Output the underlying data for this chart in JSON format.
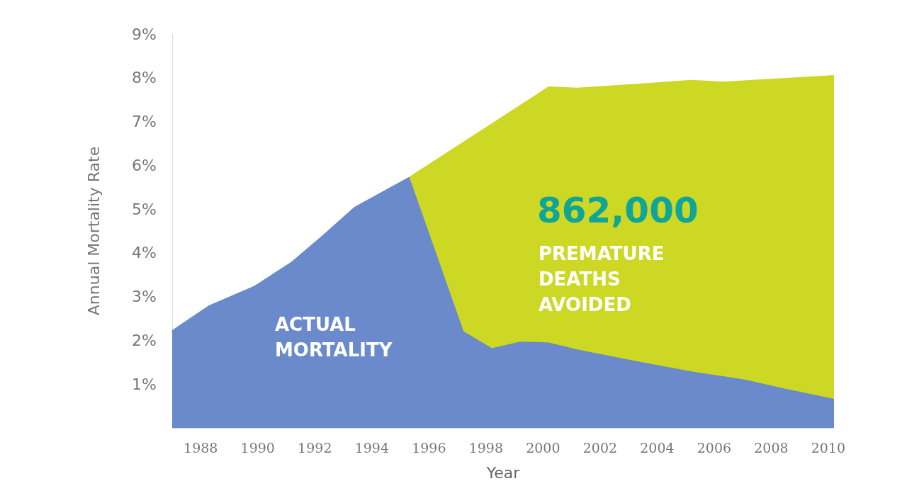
{
  "chart_data": {
    "type": "area",
    "xlabel": "Year",
    "ylabel": "Annual Mortality Rate",
    "xlim": [
      1987,
      2010.2
    ],
    "xticks": [
      1988,
      1990,
      1992,
      1994,
      1996,
      1998,
      2000,
      2002,
      2004,
      2006,
      2008,
      2010
    ],
    "ylim": [
      0,
      9
    ],
    "yticks": [
      {
        "value": 1,
        "label": "1%"
      },
      {
        "value": 2,
        "label": "2%"
      },
      {
        "value": 3,
        "label": "3%"
      },
      {
        "value": 4,
        "label": "4%"
      },
      {
        "value": 5,
        "label": "5%"
      },
      {
        "value": 6,
        "label": "6%"
      },
      {
        "value": 7,
        "label": "7%"
      },
      {
        "value": 8,
        "label": "8%"
      },
      {
        "value": 9,
        "label": "9%"
      }
    ],
    "series": [
      {
        "name": "PREMATURE DEATHS AVOIDED",
        "color": "#cdd824",
        "x": [
          1995.3,
          1998.1,
          2000.2,
          2001.2,
          2003.3,
          2005.2,
          2006.3,
          2010.2
        ],
        "values": [
          5.72,
          6.9,
          7.79,
          7.76,
          7.85,
          7.94,
          7.9,
          8.05
        ]
      },
      {
        "name": "ACTUAL MORTALITY",
        "color": "#6a8acb",
        "x": [
          1987,
          1988.3,
          1989.9,
          1991.2,
          1992.3,
          1993.4,
          1995.3,
          1997.2,
          1998.2,
          1999.2,
          2000.2,
          2001.2,
          2003.3,
          2005.2,
          2007.1,
          2008.3,
          2010.2
        ],
        "values": [
          2.22,
          2.79,
          3.24,
          3.79,
          4.4,
          5.04,
          5.72,
          2.2,
          1.81,
          1.96,
          1.94,
          1.78,
          1.51,
          1.28,
          1.09,
          0.91,
          0.65
        ]
      }
    ],
    "annotations": [
      "862,000"
    ],
    "legend": false,
    "marker": "none"
  }
}
